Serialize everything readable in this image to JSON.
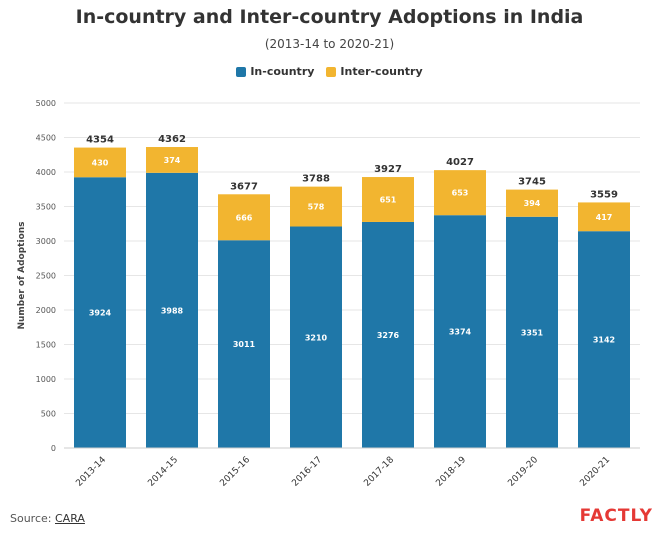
{
  "header": {
    "title": "In-country and Inter-country Adoptions in India",
    "subtitle": "(2013-14 to 2020-21)"
  },
  "legend": {
    "in_country": "In-country",
    "inter_country": "Inter-country"
  },
  "footer": {
    "source_label": "Source:",
    "source_link": "CARA",
    "logo_text": "FACTLY"
  },
  "colors": {
    "in_country": "#1f77a8",
    "inter_country": "#f2b530",
    "axis_text": "#555555",
    "grid": "#e6e6e6"
  },
  "chart_data": {
    "type": "bar",
    "stacked": true,
    "title": "In-country and Inter-country Adoptions in India",
    "subtitle": "(2013-14 to 2020-21)",
    "ylabel": "Number of Adoptions",
    "xlabel": "",
    "ylim": [
      0,
      5000
    ],
    "yticks": [
      0,
      500,
      1000,
      1500,
      2000,
      2500,
      3000,
      3500,
      4000,
      4500,
      5000
    ],
    "grid": true,
    "legend_position": "top-center",
    "categories": [
      "2013-14",
      "2014-15",
      "2015-16",
      "2016-17",
      "2017-18",
      "2018-19",
      "2019-20",
      "2020-21"
    ],
    "series": [
      {
        "name": "In-country",
        "values": [
          3924,
          3988,
          3011,
          3210,
          3276,
          3374,
          3351,
          3142
        ]
      },
      {
        "name": "Inter-country",
        "values": [
          430,
          374,
          666,
          578,
          651,
          653,
          394,
          417
        ]
      }
    ],
    "totals": [
      4354,
      4362,
      3677,
      3788,
      3927,
      4027,
      3745,
      3559
    ]
  }
}
